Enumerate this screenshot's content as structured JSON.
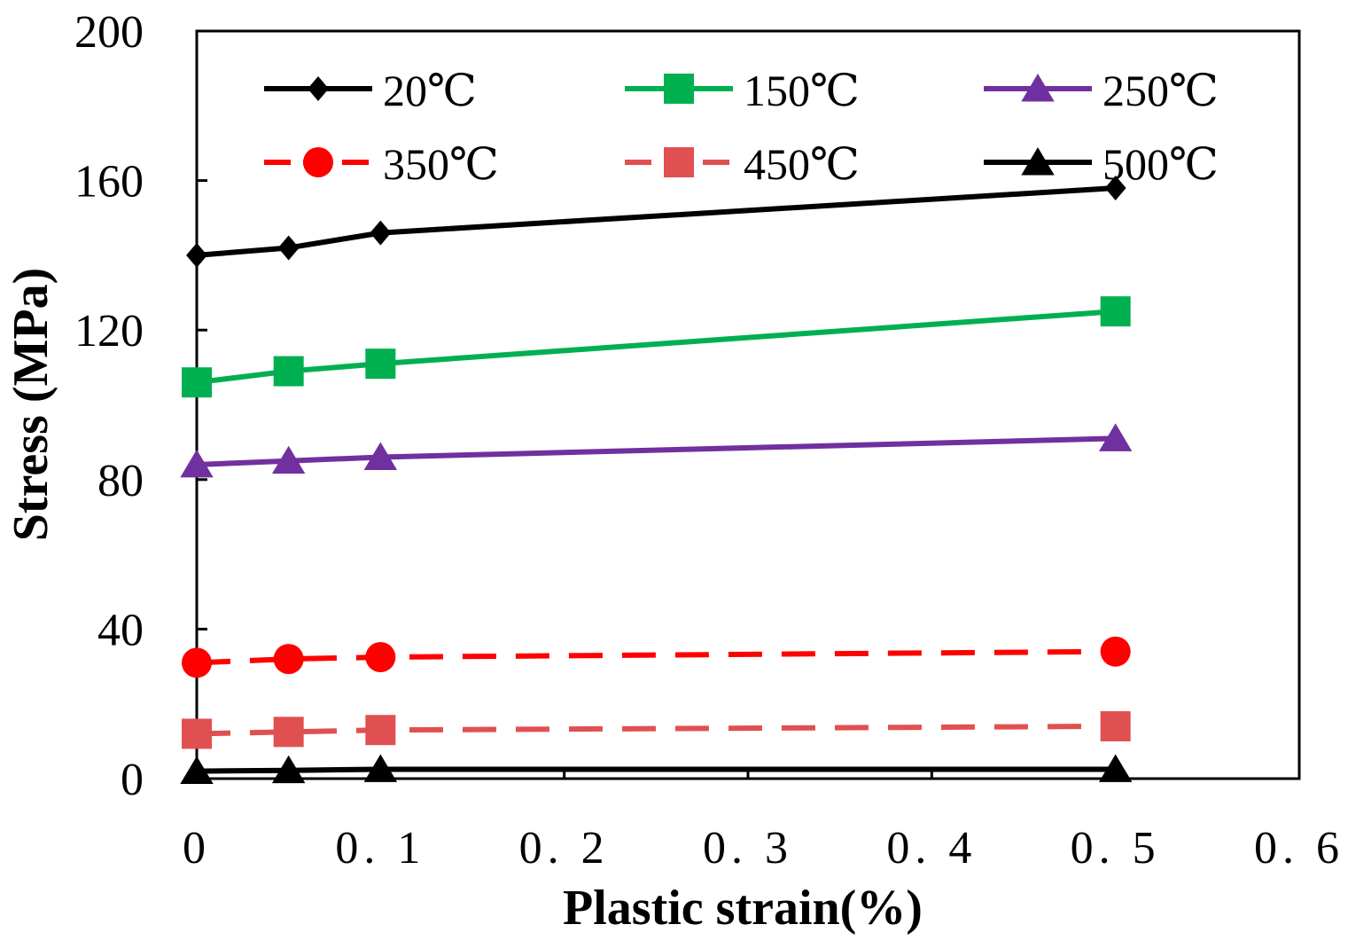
{
  "chart_data": {
    "type": "line",
    "title": "",
    "xlabel": "Plastic strain(%)",
    "ylabel": "Stress (MPa)",
    "xlim": [
      0,
      0.6
    ],
    "ylim": [
      0,
      200
    ],
    "xticks": [
      0,
      0.1,
      0.2,
      0.3,
      0.4,
      0.5,
      0.6
    ],
    "xtick_labels": [
      "0",
      "0. 1",
      "0. 2",
      "0. 3",
      "0. 4",
      "0. 5",
      "0. 6"
    ],
    "yticks": [
      0,
      40,
      80,
      120,
      160,
      200
    ],
    "ytick_labels": [
      "0",
      "40",
      "80",
      "120",
      "160",
      "200"
    ],
    "grid": false,
    "legend_position": "top",
    "series": [
      {
        "name": "20℃",
        "color": "#000000",
        "marker": "diamond",
        "dashed": false,
        "x": [
          0,
          0.05,
          0.1,
          0.5
        ],
        "y": [
          140,
          142,
          146,
          158
        ]
      },
      {
        "name": "150℃",
        "color": "#00b050",
        "marker": "square",
        "dashed": false,
        "x": [
          0,
          0.05,
          0.1,
          0.5
        ],
        "y": [
          106,
          109,
          111,
          125
        ]
      },
      {
        "name": "250℃",
        "color": "#7030a0",
        "marker": "triangle",
        "dashed": false,
        "x": [
          0,
          0.05,
          0.1,
          0.5
        ],
        "y": [
          84,
          85,
          86,
          91
        ]
      },
      {
        "name": "350℃",
        "color": "#ff0000",
        "marker": "circle",
        "dashed": true,
        "x": [
          0,
          0.05,
          0.1,
          0.5
        ],
        "y": [
          31,
          32,
          32.5,
          34
        ]
      },
      {
        "name": "450℃",
        "color": "#e05050",
        "marker": "square",
        "dashed": true,
        "x": [
          0,
          0.05,
          0.1,
          0.5
        ],
        "y": [
          12,
          12.5,
          13,
          14
        ]
      },
      {
        "name": "500℃",
        "color": "#000000",
        "marker": "triangle",
        "dashed": false,
        "x": [
          0,
          0.05,
          0.1,
          0.5
        ],
        "y": [
          2,
          2.2,
          2.5,
          2.5
        ]
      }
    ]
  }
}
